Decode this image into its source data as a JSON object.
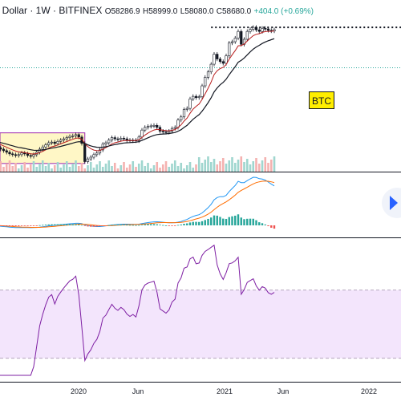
{
  "header": {
    "symbol_title": ". Dollar · 1W · BITFINEX",
    "open_label": "O",
    "open": "58286.9",
    "high_label": "H",
    "high": "58999.0",
    "low_label": "L",
    "low": "58080.0",
    "close_label": "C",
    "close": "58680.0",
    "change": "+404.0 (+0.69%)"
  },
  "annotation": {
    "text": "BTC"
  },
  "time_axis": {
    "labels": [
      "2020",
      "Jun",
      "2021",
      "Jun",
      "2022"
    ]
  },
  "colors": {
    "up": "#26a69a",
    "down": "#ef5350",
    "ema_fast": "#b71c1c",
    "ema_slow": "#131722",
    "macd": "#2196f3",
    "signal": "#ff6d00",
    "rsi": "#7e1fa3",
    "rsi_band": "#f3e5fc",
    "box_fill": "#fff7c6",
    "box_border": "#9c27b0",
    "dotted_line": "#131722"
  },
  "chart_data": {
    "type": "candlestick",
    "interval": "1W",
    "price_path": [
      9200,
      9100,
      8900,
      8600,
      8200,
      8000,
      7800,
      7600,
      7400,
      7300,
      7200,
      7300,
      7500,
      7400,
      7200,
      7100,
      7300,
      7600,
      8000,
      8300,
      8600,
      8900,
      9000,
      8800,
      9100,
      9300,
      9500,
      9700,
      9900,
      10000,
      10200,
      9800,
      8800,
      6500,
      6800,
      7000,
      7300,
      7500,
      7900,
      8700,
      8900,
      9300,
      9700,
      9500,
      9400,
      9600,
      9500,
      9300,
      9200,
      9300,
      9200,
      9800,
      11000,
      11500,
      11700,
      11800,
      11900,
      11500,
      10800,
      10700,
      10600,
      10800,
      11300,
      11500,
      13000,
      13700,
      15500,
      15800,
      18500,
      19300,
      18900,
      19200,
      23000,
      26500,
      29000,
      33000,
      39000,
      36000,
      34500,
      33500,
      38000,
      47000,
      48000,
      51000,
      57000,
      46000,
      50000,
      57000,
      59000,
      61000,
      58500,
      57000,
      60000,
      59500,
      58000,
      57500,
      58680
    ],
    "resistance_level": 61000,
    "rsi": {
      "overbought": 70,
      "oversold": 30
    }
  }
}
